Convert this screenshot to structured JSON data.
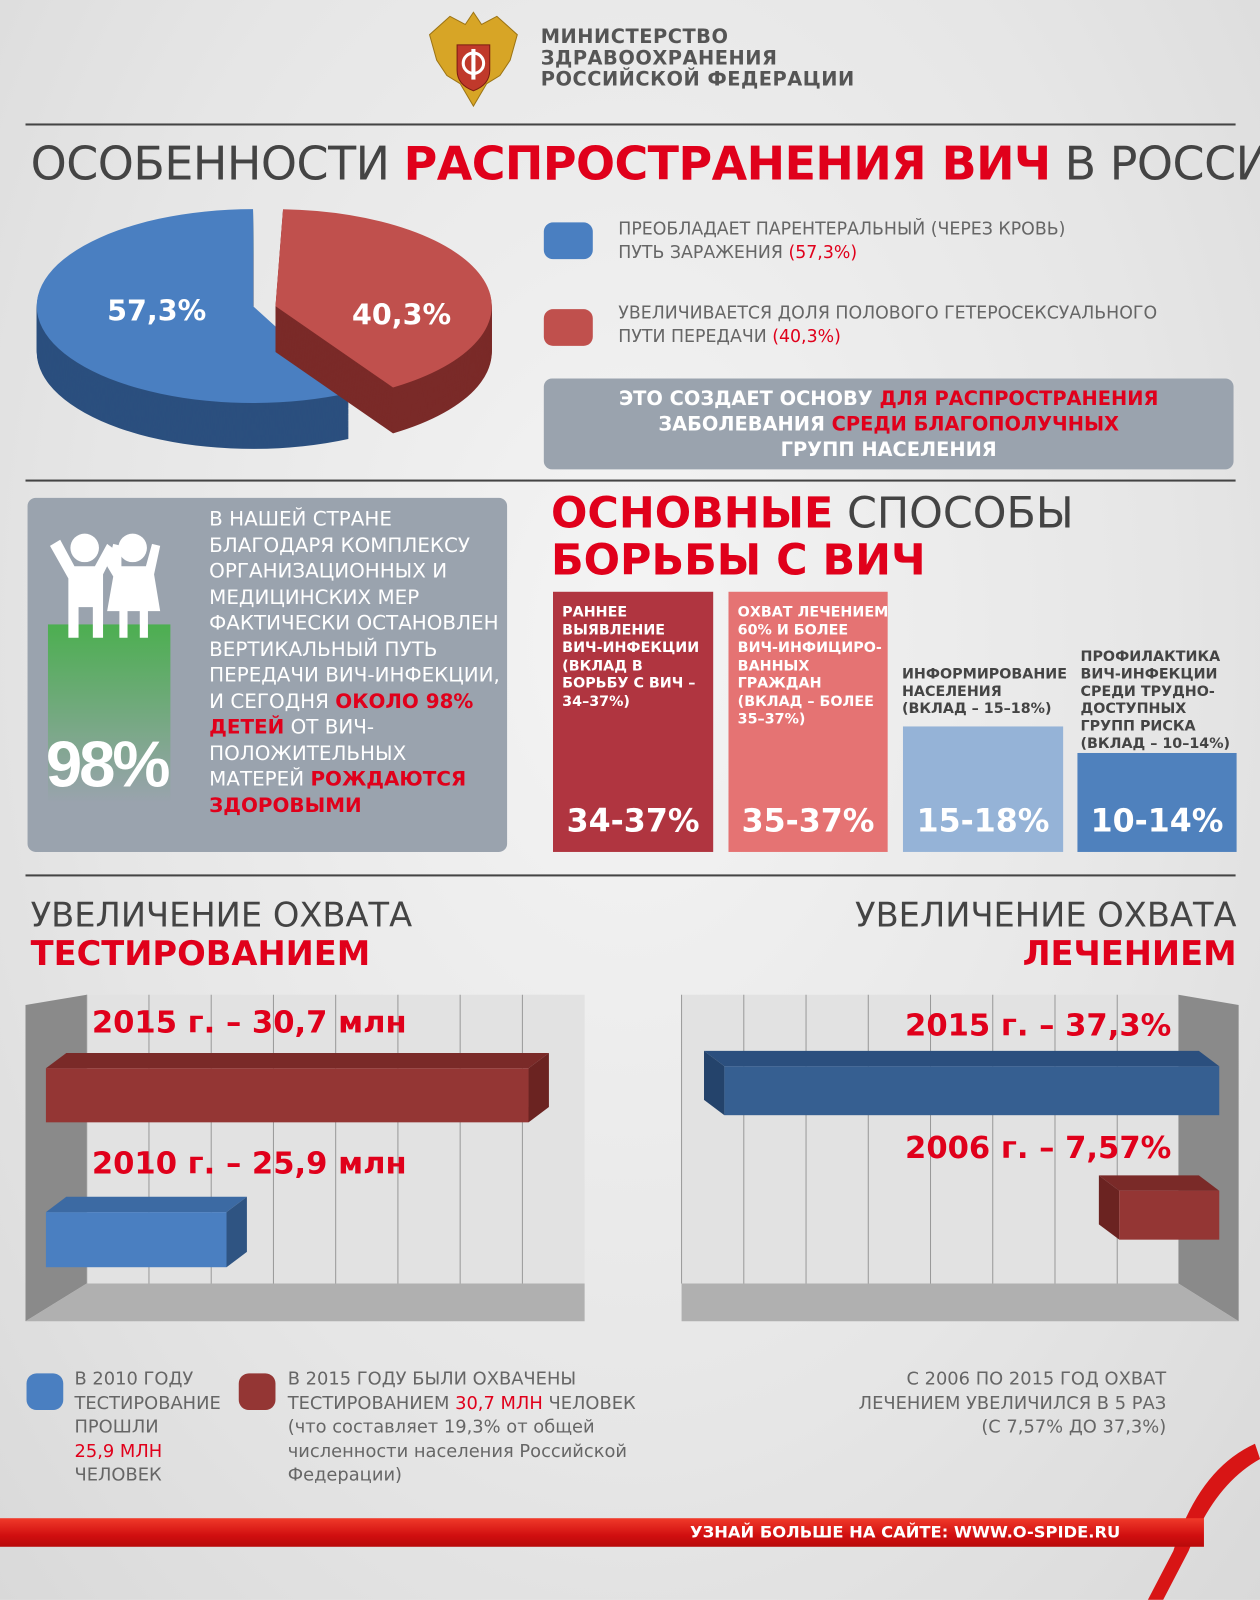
{
  "header": {
    "org_lines": [
      "МИНИСТЕРСТВО",
      "ЗДРАВООХРАНЕНИЯ",
      "РОССИЙСКОЙ ФЕДЕРАЦИИ"
    ]
  },
  "title": {
    "part1": "ОСОБЕННОСТИ ",
    "part2": "РАСПРОСТРАНЕНИЯ ВИЧ",
    "part3": " В РОССИИ"
  },
  "colors": {
    "blue": "#4a7fc1",
    "red": "#c0504d",
    "accent": "#e0001b",
    "panel": "#9aa3ae"
  },
  "chart_data": [
    {
      "type": "pie",
      "slices": [
        {
          "label": "57,3%",
          "value": 57.3,
          "color": "#4a7fc1"
        },
        {
          "label": "40,3%",
          "value": 40.3,
          "color": "#c0504d"
        }
      ]
    },
    {
      "type": "bar",
      "categories": [
        "РАННЕЕ ВЫЯВЛЕНИЕ ВИЧ-ИНФЕКЦИИ",
        "ОХВАТ ЛЕЧЕНИЕМ",
        "ИНФОРМИРОВАНИЕ НАСЕЛЕНИЯ",
        "ПРОФИЛАКТИКА"
      ],
      "values": [
        [
          34,
          37
        ],
        [
          35,
          37
        ],
        [
          15,
          18
        ],
        [
          10,
          14
        ]
      ]
    },
    {
      "type": "bar",
      "orientation": "horizontal",
      "title": "УВЕЛИЧЕНИЕ ОХВАТА ТЕСТИРОВАНИЕМ",
      "categories": [
        "2015",
        "2010"
      ],
      "values": [
        30.7,
        25.9
      ],
      "unit": "млн",
      "colors": [
        "#943634",
        "#4a7fc1"
      ]
    },
    {
      "type": "bar",
      "orientation": "horizontal",
      "title": "УВЕЛИЧЕНИЕ ОХВАТА ЛЕЧЕНИЕМ",
      "categories": [
        "2015",
        "2006"
      ],
      "values": [
        37.3,
        7.57
      ],
      "unit": "%",
      "colors": [
        "#365f91",
        "#943634"
      ]
    }
  ],
  "legend": [
    {
      "text": "ПРЕОБЛАДАЕТ ПАРЕНТЕРАЛЬНЫЙ (ЧЕРЕЗ КРОВЬ)",
      "text2": "ПУТЬ ЗАРАЖЕНИЯ ",
      "pct": "(57,3%)"
    },
    {
      "text": "УВЕЛИЧИВАЕТСЯ ДОЛЯ ПОЛОВОГО ГЕТЕРОСЕКСУАЛЬНОГО",
      "text2": "ПУТИ ПЕРЕДАЧИ ",
      "pct": "(40,3%)"
    }
  ],
  "note": {
    "a": "ЭТО СОЗДАЕТ ОСНОВУ ",
    "b": "ДЛЯ РАСПРОСТРАНЕНИЯ",
    "c": "ЗАБОЛЕВАНИЯ ",
    "d": "СРЕДИ БЛАГОПОЛУЧНЫХ",
    "e": "ГРУПП НАСЕЛЕНИЯ"
  },
  "kids": {
    "big": "98%",
    "text": "В НАШЕЙ СТРАНЕ БЛАГОДАРЯ КОМПЛЕКСУ ОРГАНИЗАЦИОННЫХ И МЕДИЦИНСКИХ МЕР ФАКТИЧЕСКИ ОСТАНОВЛЕН ВЕРТИКАЛЬНЫЙ ПУТЬ ПЕРЕДАЧИ ВИЧ-ИНФЕКЦИИ, И СЕГОДНЯ ",
    "hl1": "ОКОЛО 98% ДЕТЕЙ",
    "text2": " ОТ ВИЧ-ПОЛОЖИТЕЛЬНЫХ МАТЕРЕЙ ",
    "hl2": "РОЖДАЮТСЯ ЗДОРОВЫМИ"
  },
  "methods": {
    "h1": "ОСНОВНЫЕ",
    "h2": " СПОСОБЫ",
    "h3": "БОРЬБЫ С ВИЧ",
    "items": [
      {
        "label": "РАННЕЕ ВЫЯВЛЕНИЕ ВИЧ-ИНФЕКЦИИ (ВКЛАД В БОРЬБУ С  ВИЧ – 34–37%)",
        "pct": "34-37%"
      },
      {
        "label": "ОХВАТ ЛЕЧЕНИЕМ 60% И БОЛЕЕ ВИЧ-ИНФИЦИРО-ВАННЫХ ГРАЖДАН (ВКЛАД – БОЛЕЕ 35–37%)",
        "pct": "35-37%"
      },
      {
        "label": "ИНФОРМИРОВАНИЕ НАСЕЛЕНИЯ (ВКЛАД –  15–18%)",
        "pct": "15-18%"
      },
      {
        "label": "ПРОФИЛАКТИКА ВИЧ-ИНФЕКЦИИ СРЕДИ ТРУДНО-ДОСТУПНЫХ ГРУПП РИСКА (ВКЛАД – 10–14%)",
        "pct": "10-14%"
      }
    ]
  },
  "testing": {
    "t1": "УВЕЛИЧЕНИЕ ОХВАТА",
    "t2": "ТЕСТИРОВАНИЕМ",
    "l2015": "2015 г. – 30,7 млн",
    "l2010": "2010 г. – 25,9 млн"
  },
  "treatment": {
    "t1": "УВЕЛИЧЕНИЕ ОХВАТА",
    "t2": "ЛЕЧЕНИЕМ",
    "l2015": "2015 г. – 37,3%",
    "l2006": "2006 г. – 7,57%"
  },
  "bottom": {
    "b1a": "В 2010 ГОДУ ТЕСТИРОВАНИЕ ПРОШЛИ",
    "b1b": "25,9 МЛН",
    "b1c": "ЧЕЛОВЕК",
    "b2a": "В 2015 ГОДУ БЫЛИ ОХВАЧЕНЫ ТЕСТИРОВАНИЕМ ",
    "b2b": "30,7 МЛН",
    "b2c": " ЧЕЛОВЕК (что составляет 19,3% от общей численности населения Российской Федерации)",
    "b3": "С 2006 ПО 2015 ГОД ОХВАТ ЛЕЧЕНИЕМ УВЕЛИЧИЛСЯ В 5 РАЗ (С 7,57% ДО 37,3%)"
  },
  "footer": {
    "link": "УЗНАЙ БОЛЬШЕ НА САЙТЕ: WWW.O-SPIDE.RU"
  }
}
